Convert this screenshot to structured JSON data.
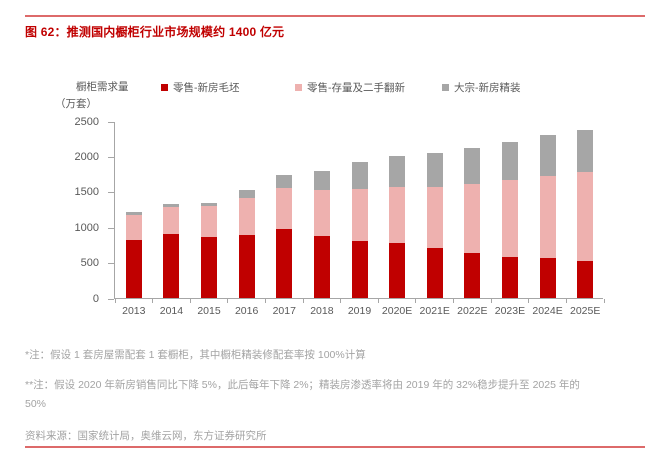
{
  "figure": {
    "title": "图 62：推测国内橱柜行业市场规模约 1400 亿元"
  },
  "y_axis": {
    "title_line1": "橱柜需求量",
    "title_line2": "（万套）"
  },
  "legend": [
    {
      "label": "零售-新房毛坯",
      "color": "#c00000"
    },
    {
      "label": "零售-存量及二手翻新",
      "color": "#eeb1af"
    },
    {
      "label": "大宗-新房精装",
      "color": "#a6a6a6"
    }
  ],
  "chart_data": {
    "type": "bar",
    "stacked": true,
    "title": "推测国内橱柜行业市场规模约 1400 亿元",
    "categories": [
      "2013",
      "2014",
      "2015",
      "2016",
      "2017",
      "2018",
      "2019",
      "2020E",
      "2021E",
      "2022E",
      "2023E",
      "2024E",
      "2025E"
    ],
    "series": [
      {
        "name": "零售-新房毛坯",
        "color": "#c00000",
        "values": [
          820,
          900,
          855,
          890,
          970,
          870,
          810,
          770,
          700,
          630,
          580,
          560,
          520
        ]
      },
      {
        "name": "零售-存量及二手翻新",
        "color": "#eeb1af",
        "values": [
          350,
          390,
          445,
          520,
          580,
          660,
          735,
          800,
          875,
          980,
          1085,
          1165,
          1260
        ]
      },
      {
        "name": "大宗-新房精装",
        "color": "#a6a6a6",
        "values": [
          50,
          45,
          45,
          115,
          190,
          270,
          370,
          430,
          480,
          505,
          535,
          575,
          590
        ]
      }
    ],
    "xlabel": "",
    "ylabel": "橱柜需求量（万套）",
    "ylim": [
      0,
      2500
    ],
    "yticks": [
      0,
      500,
      1000,
      1500,
      2000,
      2500
    ],
    "grid": false,
    "legend_position": "top"
  },
  "notes": {
    "note1": "*注：假设 1 套房屋需配套 1 套橱柜，其中橱柜精装修配套率按 100%计算",
    "note2_line1": "**注：假设 2020 年新房销售同比下降 5%，此后每年下降 2%；精装房渗透率将由 2019 年的 32%稳步提升至 2025 年的",
    "note2_line2": "50%",
    "source": "资料来源：国家统计局，奥维云网，东方证券研究所"
  },
  "colors": {
    "title_red": "#c00000",
    "rule_salmon": "#dd6a6a",
    "axis_gray": "#a6a6a6",
    "text_gray": "#595959",
    "note_gray": "#a3a3a3"
  }
}
